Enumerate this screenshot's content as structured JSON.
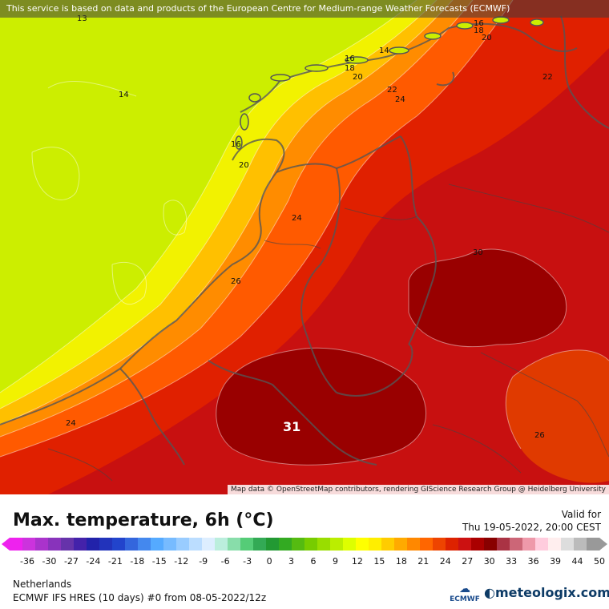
{
  "notice": "This service is based on data and products of the European Centre for Medium-range Weather Forecasts (ECMWF)",
  "attribution": "Map data © OpenStreetMap contributors, rendering GIScience Research Group @ Heidelberg University",
  "title": "Max. temperature, 6h (°C)",
  "valid_label": "Valid for",
  "valid_time": "Thu 19-05-2022, 20:00 CEST",
  "region": "Netherlands",
  "model": "ECMWF IFS HRES (10 days) #0 from  08-05-2022/12z",
  "logo_ecmwf": "ECMWF",
  "logo_brand": "meteologix.com",
  "scale_ticks": [
    "-36",
    "-30",
    "-27",
    "-24",
    "-21",
    "-18",
    "-15",
    "-12",
    "-9",
    "-6",
    "-3",
    "0",
    "3",
    "6",
    "9",
    "12",
    "15",
    "18",
    "21",
    "24",
    "27",
    "30",
    "33",
    "36",
    "39",
    "44",
    "50"
  ],
  "scale_colors": [
    "#ee22ee",
    "#cc33dd",
    "#aa33cc",
    "#8833bb",
    "#6633aa",
    "#4422aa",
    "#2222aa",
    "#2233bb",
    "#2244cc",
    "#3366dd",
    "#4488ee",
    "#55aaff",
    "#77bbff",
    "#99ccff",
    "#bbddff",
    "#ddeeff",
    "#bbeedd",
    "#88ddaa",
    "#55cc77",
    "#33aa55",
    "#229933",
    "#33aa22",
    "#55bb11",
    "#77cc00",
    "#99dd00",
    "#bbee00",
    "#ddff00",
    "#ffff00",
    "#ffee00",
    "#ffcc00",
    "#ffaa00",
    "#ff8800",
    "#ff6600",
    "#ee4400",
    "#dd2200",
    "#cc1111",
    "#aa0000",
    "#880000",
    "#aa3344",
    "#cc6677",
    "#ee99aa",
    "#ffccdd",
    "#ffeeee",
    "#dddddd",
    "#bbbbbb",
    "#999999"
  ],
  "contour_labels": [
    {
      "text": "13"
    },
    {
      "text": "14"
    },
    {
      "text": "14"
    },
    {
      "text": "16"
    },
    {
      "text": "18"
    },
    {
      "text": "20"
    },
    {
      "text": "16"
    },
    {
      "text": "18"
    },
    {
      "text": "20"
    },
    {
      "text": "22"
    },
    {
      "text": "24"
    },
    {
      "text": "22"
    },
    {
      "text": "16"
    },
    {
      "text": "20"
    },
    {
      "text": "24"
    },
    {
      "text": "26"
    },
    {
      "text": "30"
    },
    {
      "text": "24"
    },
    {
      "text": "26"
    },
    {
      "text": "31"
    }
  ]
}
